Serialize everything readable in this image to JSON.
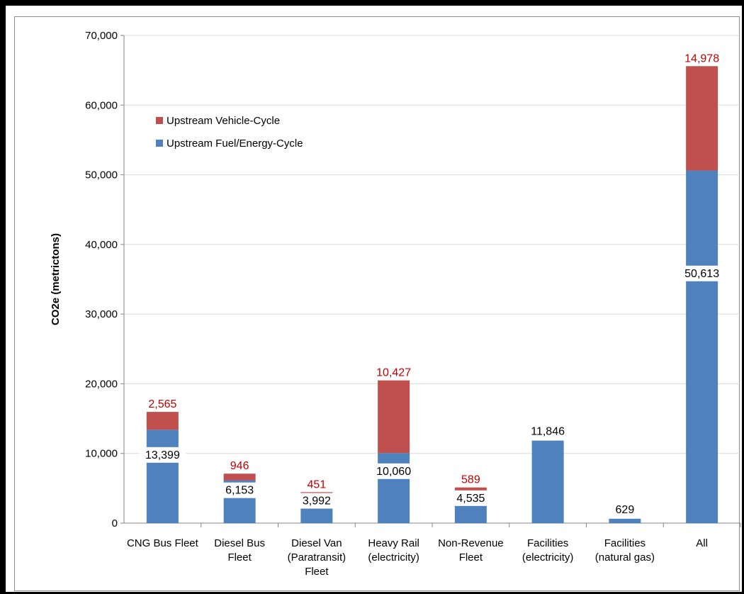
{
  "chart_data": {
    "type": "bar",
    "stacked": true,
    "ylabel": "CO2e (metrictons)",
    "ylim": [
      0,
      70000
    ],
    "yticks": [
      0,
      10000,
      20000,
      30000,
      40000,
      50000,
      60000,
      70000
    ],
    "ytick_labels": [
      "0",
      "10,000",
      "20,000",
      "30,000",
      "40,000",
      "50,000",
      "60,000",
      "70,000"
    ],
    "grid": true,
    "legend_position": "top-left",
    "categories": [
      [
        "CNG Bus Fleet"
      ],
      [
        "Diesel Bus",
        "Fleet"
      ],
      [
        "Diesel Van",
        "(Paratransit)",
        "Fleet"
      ],
      [
        "Heavy Rail",
        "(electricity)"
      ],
      [
        "Non-Revenue",
        "Fleet"
      ],
      [
        "Facilities",
        "(electricity)"
      ],
      [
        "Facilities",
        "(natural gas)"
      ],
      [
        "All"
      ]
    ],
    "series": [
      {
        "name": "Upstream Fuel/Energy-Cycle",
        "color": "#4f81bd",
        "values": [
          13399,
          6153,
          3992,
          10060,
          4535,
          11846,
          629,
          50613
        ],
        "labels": [
          "13,399",
          "6,153",
          "3,992",
          "10,060",
          "4,535",
          "11,846",
          "629",
          "50,613"
        ]
      },
      {
        "name": "Upstream Vehicle-Cycle",
        "color": "#c0504d",
        "values": [
          2565,
          946,
          451,
          10427,
          589,
          0,
          0,
          14978
        ],
        "labels": [
          "2,565",
          "946",
          "451",
          "10,427",
          "589",
          "",
          "",
          "14,978"
        ]
      }
    ]
  }
}
